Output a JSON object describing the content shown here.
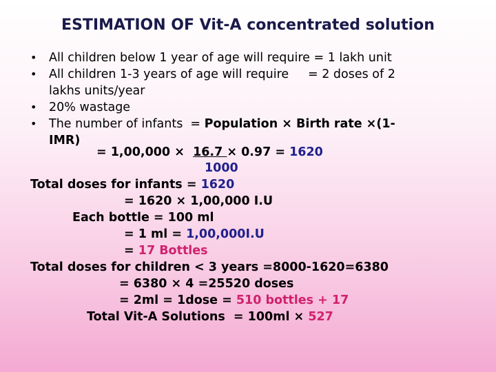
{
  "title": "ESTIMATION OF Vit-A concentrated solution",
  "bullets": {
    "b1": "All children below 1 year of age will require = 1 lakh unit",
    "b2a": "All children 1-3 years of age will require     = 2 doses of 2",
    "b2b": "lakhs units/year",
    "b3": "20% wastage",
    "b4a": "The number of infants  = ",
    "b4b": "Population × Birth rate ×(1-",
    "b4c": "IMR)"
  },
  "calc": {
    "l1a": "= 1,00,000 ×  ",
    "l1b": "16.7 ",
    "l1c": "× 0.97 = ",
    "l1d": "1620",
    "l2": "1000",
    "l3a": "Total doses for infants = ",
    "l3b": "1620",
    "l4a": "= 1620 × 1,00,000 I.U",
    "l5": "Each bottle = 100 ml",
    "l6a": "= 1 ml = ",
    "l6b": "1,00,000I.U",
    "l7a": "= ",
    "l7b": "17 Bottles",
    "l8": "Total doses for children < 3 years =8000-1620=6380",
    "l9": "= 6380 × 4 =25520 doses",
    "l10a": "= 2ml = 1dose = ",
    "l10b": "510 bottles + 17",
    "l11a": "Total Vit-A Solutions  = 100ml × ",
    "l11b": "527"
  },
  "colors": {
    "title": "#1a1a4a",
    "blue": "#20208c",
    "red": "#d0216e"
  }
}
